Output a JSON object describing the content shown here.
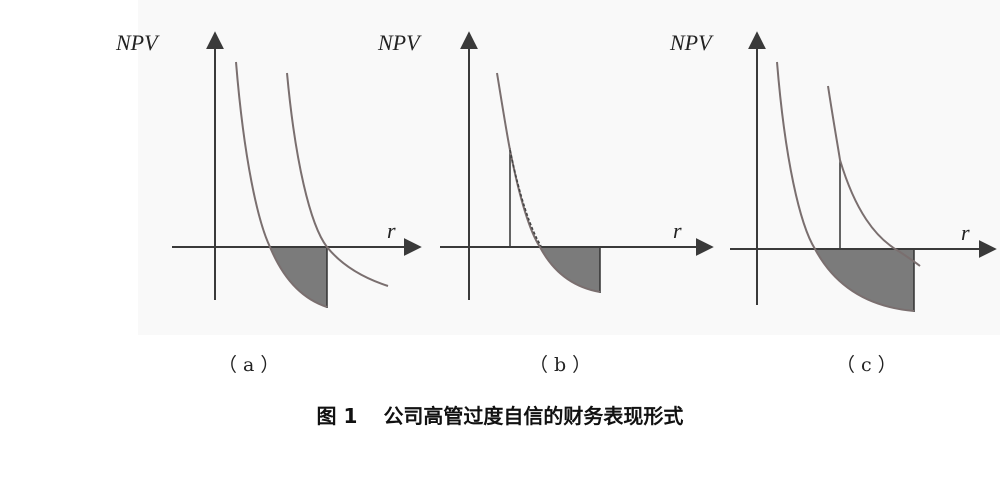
{
  "panels": [
    {
      "ylabel": "NPV",
      "xlabel": "r",
      "sublabel": "（a）"
    },
    {
      "ylabel": "NPV",
      "xlabel": "r",
      "sublabel": "（b）"
    },
    {
      "ylabel": "NPV",
      "xlabel": "r",
      "sublabel": "（c）"
    }
  ],
  "caption": {
    "label": "图 1",
    "title": "公司高管过度自信的财务表现形式"
  },
  "colors": {
    "axis": "#3a3a3a",
    "curve": "#7a6f6f",
    "shade": "#7b7b7b",
    "panel_background": "#f9f9f9"
  }
}
